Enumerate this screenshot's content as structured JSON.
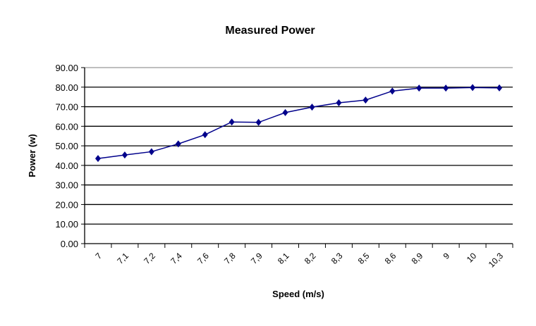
{
  "chart_data": {
    "type": "line",
    "title": "Measured Power",
    "xlabel": "Speed (m/s)",
    "ylabel": "Power (w)",
    "categories": [
      "7",
      "7,1",
      "7,2",
      "7,4",
      "7,6",
      "7,8",
      "7,9",
      "8,1",
      "8,2",
      "8,3",
      "8,5",
      "8,6",
      "8,9",
      "9",
      "10",
      "10,3"
    ],
    "series": [
      {
        "values": [
          43.5,
          45.3,
          47.0,
          51.0,
          55.7,
          62.2,
          62.0,
          67.0,
          69.8,
          72.0,
          73.4,
          78.0,
          79.5,
          79.5,
          79.8,
          79.6
        ],
        "color": "#00008B"
      }
    ],
    "ylim": [
      0,
      90
    ],
    "yticks": [
      "0.00",
      "10.00",
      "20.00",
      "30.00",
      "40.00",
      "50.00",
      "60.00",
      "70.00",
      "80.00",
      "90.00"
    ],
    "grid": true,
    "legend": "none"
  }
}
